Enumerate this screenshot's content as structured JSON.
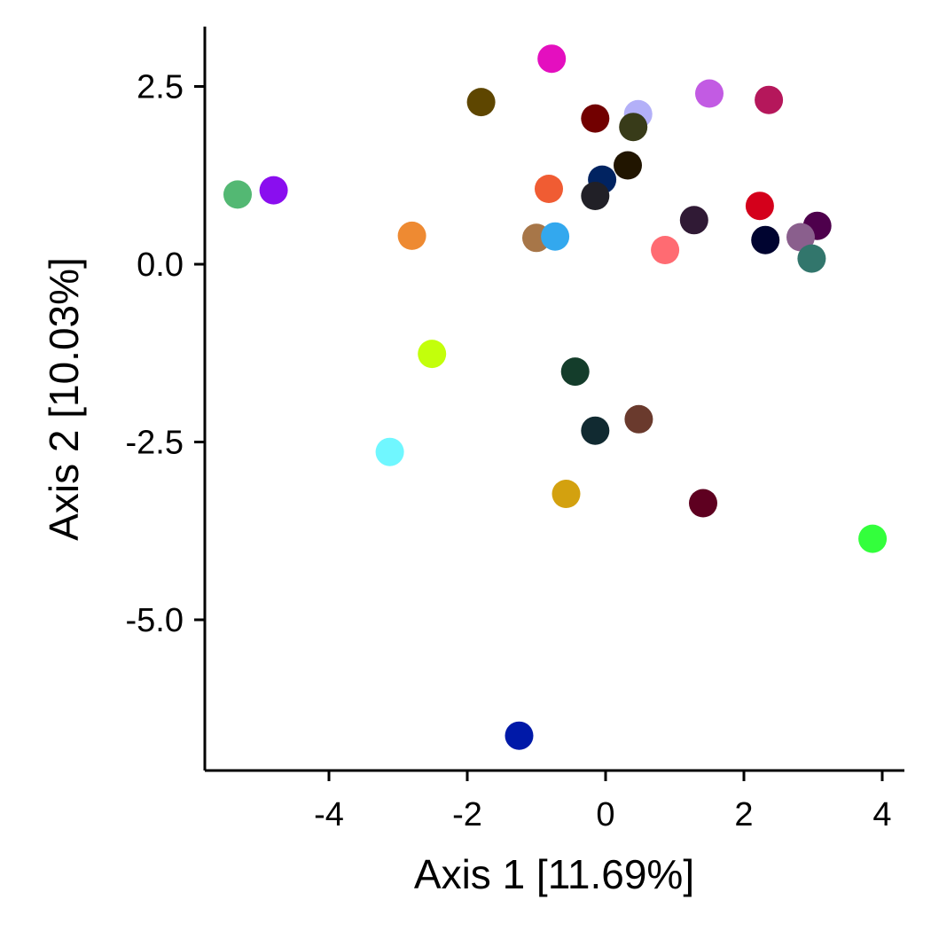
{
  "chart_data": {
    "type": "scatter",
    "title": "",
    "xlabel": "Axis 1 [11.69%]",
    "ylabel": "Axis 2 [10.03%]",
    "xlim": [
      -5.65,
      4.3
    ],
    "ylim": [
      -7.1,
      3.35
    ],
    "grid": false,
    "legend": "none",
    "xticks": [
      -4,
      -2,
      0,
      2,
      4
    ],
    "xtick_labels": [
      "-4",
      "-2",
      "0",
      "2",
      "4"
    ],
    "yticks": [
      2.5,
      0.0,
      -2.5,
      -5.0
    ],
    "ytick_labels": [
      "2.5",
      "0.0",
      "-2.5",
      "-5.0"
    ],
    "points": [
      {
        "x": -0.78,
        "y": 2.89,
        "color": "#E40FBF"
      },
      {
        "x": 1.5,
        "y": 2.4,
        "color": "#C25BE3"
      },
      {
        "x": 2.36,
        "y": 2.31,
        "color": "#B5175B"
      },
      {
        "x": -1.8,
        "y": 2.28,
        "color": "#5E4600"
      },
      {
        "x": -0.15,
        "y": 2.05,
        "color": "#720000"
      },
      {
        "x": 0.47,
        "y": 2.11,
        "color": "#B3B0F8"
      },
      {
        "x": 0.4,
        "y": 1.93,
        "color": "#383B19"
      },
      {
        "x": 0.32,
        "y": 1.39,
        "color": "#211500"
      },
      {
        "x": -0.05,
        "y": 1.19,
        "color": "#012361"
      },
      {
        "x": -0.82,
        "y": 1.06,
        "color": "#F05C33"
      },
      {
        "x": -0.15,
        "y": 0.96,
        "color": "#212027"
      },
      {
        "x": -5.32,
        "y": 0.98,
        "color": "#53B873"
      },
      {
        "x": -4.8,
        "y": 1.04,
        "color": "#8A0EEF"
      },
      {
        "x": 2.23,
        "y": 0.82,
        "color": "#D4001B"
      },
      {
        "x": 3.06,
        "y": 0.54,
        "color": "#4E004C"
      },
      {
        "x": 2.82,
        "y": 0.38,
        "color": "#8A5F8D"
      },
      {
        "x": 2.31,
        "y": 0.34,
        "color": "#000430"
      },
      {
        "x": 1.28,
        "y": 0.62,
        "color": "#301A35"
      },
      {
        "x": 2.98,
        "y": 0.08,
        "color": "#32766C"
      },
      {
        "x": 0.86,
        "y": 0.2,
        "color": "#FF6B72"
      },
      {
        "x": -2.8,
        "y": 0.4,
        "color": "#EE8A32"
      },
      {
        "x": -1.0,
        "y": 0.37,
        "color": "#A77648"
      },
      {
        "x": -0.73,
        "y": 0.39,
        "color": "#33A8EE"
      },
      {
        "x": -2.51,
        "y": -1.26,
        "color": "#C3FF0B"
      },
      {
        "x": -0.44,
        "y": -1.51,
        "color": "#143D2B"
      },
      {
        "x": -0.15,
        "y": -2.34,
        "color": "#112A31"
      },
      {
        "x": 0.48,
        "y": -2.18,
        "color": "#6A3A2D"
      },
      {
        "x": -3.12,
        "y": -2.64,
        "color": "#70F7FF"
      },
      {
        "x": -0.57,
        "y": -3.23,
        "color": "#D3A10F"
      },
      {
        "x": 1.41,
        "y": -3.36,
        "color": "#5E0020"
      },
      {
        "x": 3.86,
        "y": -3.86,
        "color": "#33FF3C"
      },
      {
        "x": -1.25,
        "y": -6.63,
        "color": "#0019A8"
      }
    ]
  }
}
